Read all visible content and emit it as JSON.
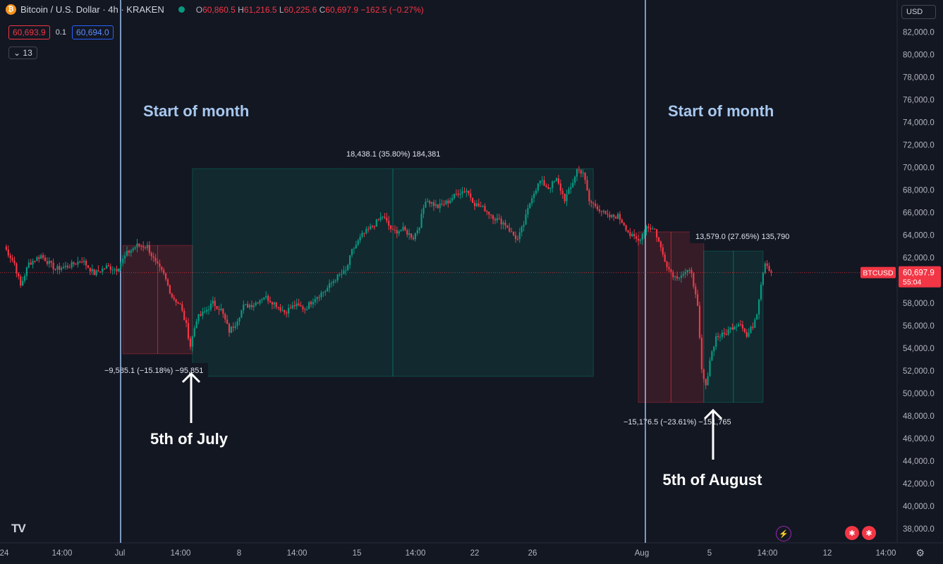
{
  "header": {
    "symbol": "Bitcoin / U.S. Dollar · 4h · KRAKEN",
    "coin_icon": "bitcoin-icon",
    "open": "60,860.5",
    "high": "61,216.5",
    "low": "60,225.6",
    "close": "60,697.9",
    "change": "−162.5 (−0.27%)",
    "sell_price": "60,693.9",
    "spread": "0.1",
    "buy_price": "60,694.0",
    "indicators_count": "13"
  },
  "currency": "USD",
  "colors": {
    "up": "#089981",
    "down": "#f23645",
    "bg": "#131722",
    "month_line": "#9ec4f5",
    "label": "#a8c8ee"
  },
  "chart_data": {
    "type": "candlestick",
    "ylim": [
      37000,
      83000
    ],
    "y_ticks": [
      "82,000.0",
      "80,000.0",
      "78,000.0",
      "76,000.0",
      "74,000.0",
      "72,000.0",
      "70,000.0",
      "68,000.0",
      "66,000.0",
      "64,000.0",
      "62,000.0",
      "60,000.0",
      "58,000.0",
      "56,000.0",
      "54,000.0",
      "52,000.0",
      "50,000.0",
      "48,000.0",
      "46,000.0",
      "44,000.0",
      "42,000.0",
      "40,000.0",
      "38,000.0"
    ],
    "x_ticks": [
      "24",
      "14:00",
      "Jul",
      "14:00",
      "8",
      "14:00",
      "15",
      "14:00",
      "22",
      "26",
      "Aug",
      "5",
      "14:00",
      "12",
      "14:00"
    ],
    "path": [
      {
        "b": 0,
        "p": 63000
      },
      {
        "b": 5,
        "p": 61500
      },
      {
        "b": 8,
        "p": 59500
      },
      {
        "b": 12,
        "p": 61500
      },
      {
        "b": 18,
        "p": 62200
      },
      {
        "b": 25,
        "p": 61000
      },
      {
        "b": 32,
        "p": 61300
      },
      {
        "b": 38,
        "p": 61800
      },
      {
        "b": 44,
        "p": 60600
      },
      {
        "b": 50,
        "p": 61200
      },
      {
        "b": 55,
        "p": 61000
      },
      {
        "b": 60,
        "p": 62400
      },
      {
        "b": 65,
        "p": 63100
      },
      {
        "b": 70,
        "p": 63000
      },
      {
        "b": 74,
        "p": 61500
      },
      {
        "b": 78,
        "p": 60500
      },
      {
        "b": 82,
        "p": 58600
      },
      {
        "b": 86,
        "p": 57800
      },
      {
        "b": 89,
        "p": 56000
      },
      {
        "b": 91,
        "p": 54200
      },
      {
        "b": 94,
        "p": 56600
      },
      {
        "b": 98,
        "p": 57200
      },
      {
        "b": 102,
        "p": 58000
      },
      {
        "b": 106,
        "p": 57400
      },
      {
        "b": 110,
        "p": 55500
      },
      {
        "b": 113,
        "p": 56200
      },
      {
        "b": 117,
        "p": 57700
      },
      {
        "b": 122,
        "p": 57900
      },
      {
        "b": 127,
        "p": 58600
      },
      {
        "b": 132,
        "p": 58000
      },
      {
        "b": 137,
        "p": 57200
      },
      {
        "b": 142,
        "p": 57800
      },
      {
        "b": 147,
        "p": 57500
      },
      {
        "b": 152,
        "p": 58500
      },
      {
        "b": 157,
        "p": 59100
      },
      {
        "b": 162,
        "p": 60200
      },
      {
        "b": 167,
        "p": 60800
      },
      {
        "b": 170,
        "p": 62600
      },
      {
        "b": 175,
        "p": 64000
      },
      {
        "b": 180,
        "p": 64800
      },
      {
        "b": 185,
        "p": 65700
      },
      {
        "b": 190,
        "p": 64300
      },
      {
        "b": 195,
        "p": 64500
      },
      {
        "b": 200,
        "p": 63800
      },
      {
        "b": 203,
        "p": 64900
      },
      {
        "b": 206,
        "p": 67200
      },
      {
        "b": 212,
        "p": 66500
      },
      {
        "b": 217,
        "p": 67000
      },
      {
        "b": 222,
        "p": 67800
      },
      {
        "b": 226,
        "p": 68000
      },
      {
        "b": 230,
        "p": 66800
      },
      {
        "b": 235,
        "p": 66300
      },
      {
        "b": 240,
        "p": 65500
      },
      {
        "b": 245,
        "p": 65000
      },
      {
        "b": 248,
        "p": 64200
      },
      {
        "b": 251,
        "p": 63600
      },
      {
        "b": 254,
        "p": 65000
      },
      {
        "b": 258,
        "p": 67500
      },
      {
        "b": 262,
        "p": 68800
      },
      {
        "b": 266,
        "p": 68200
      },
      {
        "b": 270,
        "p": 68900
      },
      {
        "b": 274,
        "p": 67200
      },
      {
        "b": 277,
        "p": 68200
      },
      {
        "b": 280,
        "p": 69800
      },
      {
        "b": 283,
        "p": 69600
      },
      {
        "b": 286,
        "p": 67000
      },
      {
        "b": 290,
        "p": 66500
      },
      {
        "b": 295,
        "p": 65600
      },
      {
        "b": 300,
        "p": 65700
      },
      {
        "b": 303,
        "p": 65000
      },
      {
        "b": 306,
        "p": 64000
      },
      {
        "b": 310,
        "p": 63500
      },
      {
        "b": 314,
        "p": 64800
      },
      {
        "b": 318,
        "p": 64500
      },
      {
        "b": 322,
        "p": 62300
      },
      {
        "b": 325,
        "p": 61000
      },
      {
        "b": 328,
        "p": 60300
      },
      {
        "b": 332,
        "p": 60600
      },
      {
        "b": 336,
        "p": 60800
      },
      {
        "b": 339,
        "p": 57500
      },
      {
        "b": 341,
        "p": 52000
      },
      {
        "b": 343,
        "p": 50500
      },
      {
        "b": 345,
        "p": 53000
      },
      {
        "b": 348,
        "p": 55000
      },
      {
        "b": 352,
        "p": 55200
      },
      {
        "b": 356,
        "p": 55900
      },
      {
        "b": 360,
        "p": 56300
      },
      {
        "b": 363,
        "p": 55000
      },
      {
        "b": 366,
        "p": 56000
      },
      {
        "b": 368,
        "p": 57200
      },
      {
        "b": 370,
        "p": 59800
      },
      {
        "b": 372,
        "p": 61700
      },
      {
        "b": 375,
        "p": 60700
      }
    ],
    "month_lines": [
      {
        "label": "Start of month",
        "date": "Jul 1"
      },
      {
        "label": "Start of month",
        "date": "Aug 1"
      }
    ],
    "current_price": {
      "symbol": "BTCUSD",
      "price": "60,697.9",
      "countdown": "55:04",
      "value": 60697.9
    },
    "measurements": [
      {
        "label": "−9,585.1 (−15.18%) −95,851",
        "from_bar": 58,
        "to_bar": 92,
        "high": 63100,
        "low": 53500,
        "type": "down"
      },
      {
        "label": "18,438.1 (35.80%) 184,381",
        "from_bar": 92,
        "to_bar": 288,
        "high": 69900,
        "low": 51500,
        "type": "up"
      },
      {
        "label": "−15,176.5 (−23.61%) −151,765",
        "from_bar": 310,
        "to_bar": 342,
        "high": 64300,
        "low": 49200,
        "type": "down"
      },
      {
        "label": "13,579.0 (27.65%) 135,790",
        "from_bar": 342,
        "to_bar": 371,
        "high": 62600,
        "low": 49200,
        "type": "up"
      }
    ],
    "annotations": [
      {
        "text": "5th of July",
        "bar": 91,
        "price": 53500
      },
      {
        "text": "5th of August",
        "bar": 341,
        "price": 49500
      }
    ]
  }
}
